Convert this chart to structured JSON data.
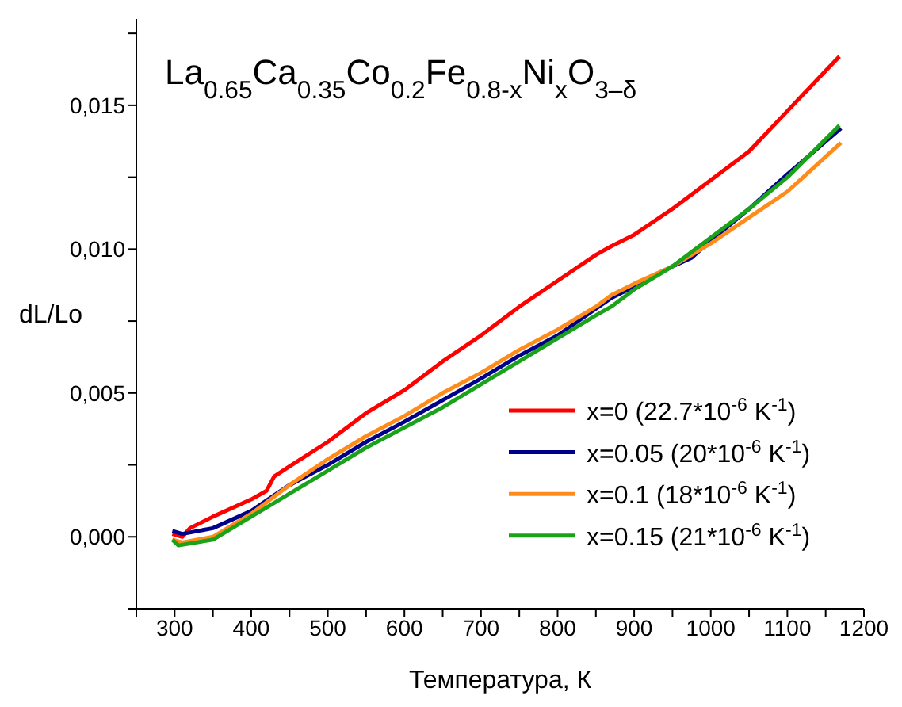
{
  "chart_data": {
    "type": "line",
    "title": "La$_{0.65}$Ca$_{0.35}$Co$_{0.2}$Fe$_{0.8-x}$Ni$_{x}$O$_{3–δ}$",
    "xlabel": "Температура, К",
    "ylabel": "dL/Lo",
    "xlim": [
      250,
      1200
    ],
    "xticks": [
      {
        "value": 250,
        "label": null
      },
      300,
      {
        "value": 350,
        "label": null
      },
      400,
      {
        "value": 450,
        "label": null
      },
      500,
      {
        "value": 550,
        "label": null
      },
      600,
      {
        "value": 650,
        "label": null
      },
      700,
      {
        "value": 750,
        "label": null
      },
      800,
      {
        "value": 850,
        "label": null
      },
      900,
      {
        "value": 950,
        "label": null
      },
      1000,
      {
        "value": 1050,
        "label": null
      },
      1100,
      {
        "value": 1150,
        "label": null
      },
      1200
    ],
    "ylim": [
      -0.0025,
      0.018
    ],
    "yticks": [
      {
        "value": -0.0025,
        "label": null
      },
      {
        "value": 0,
        "label": "0,000"
      },
      {
        "value": 0.0025,
        "label": null
      },
      {
        "value": 0.005,
        "label": "0,005"
      },
      {
        "value": 0.0075,
        "label": null
      },
      {
        "value": 0.01,
        "label": "0,010"
      },
      {
        "value": 0.0125,
        "label": null
      },
      {
        "value": 0.015,
        "label": "0,015"
      },
      {
        "value": 0.0175,
        "label": null
      }
    ],
    "legend": "bottom right",
    "marker": "none",
    "line_style": "solid",
    "series": [
      {
        "name": "x=0 (22.7*10$^{-6}$ K$^{-1}$)",
        "color": "#ff0000",
        "x": [
          297,
          310,
          320,
          350,
          400,
          420,
          430,
          450,
          500,
          550,
          600,
          650,
          700,
          750,
          800,
          850,
          870,
          900,
          950,
          1000,
          1050,
          1100,
          1150,
          1168
        ],
        "values": [
          0.0001,
          0.0,
          0.0003,
          0.0007,
          0.0013,
          0.0016,
          0.0021,
          0.00245,
          0.0033,
          0.0043,
          0.0051,
          0.0061,
          0.007,
          0.008,
          0.0089,
          0.0098,
          0.0101,
          0.0105,
          0.0114,
          0.0124,
          0.0134,
          0.0148,
          0.0162,
          0.0167
        ]
      },
      {
        "name": "x=0.05 (20*10$^{-6}$ K$^{-1}$)",
        "color": "#00008b",
        "x": [
          297,
          310,
          350,
          400,
          450,
          500,
          550,
          600,
          650,
          700,
          750,
          800,
          870,
          900,
          950,
          975,
          1000,
          1050,
          1100,
          1170
        ],
        "values": [
          0.0002,
          0.0001,
          0.0003,
          0.0009,
          0.0018,
          0.0025,
          0.0033,
          0.004,
          0.00475,
          0.0055,
          0.0063,
          0.007,
          0.0083,
          0.0087,
          0.0094,
          0.0097,
          0.0103,
          0.0114,
          0.0126,
          0.0142
        ]
      },
      {
        "name": "x=0.1 (18*10$^{-6}$ K$^{-1}$)",
        "color": "#ff8c1a",
        "x": [
          297,
          310,
          350,
          400,
          430,
          450,
          500,
          550,
          600,
          650,
          700,
          750,
          800,
          850,
          870,
          900,
          950,
          1000,
          1050,
          1100,
          1170
        ],
        "values": [
          -0.0001,
          -0.0002,
          0.0,
          0.0008,
          0.0014,
          0.0018,
          0.0027,
          0.0035,
          0.0042,
          0.005,
          0.0057,
          0.0065,
          0.0072,
          0.008,
          0.0084,
          0.0088,
          0.0094,
          0.0102,
          0.0111,
          0.012,
          0.0137
        ]
      },
      {
        "name": "x=0.15 (21*10$^{-6}$ K$^{-1}$)",
        "color": "#1aa31a",
        "x": [
          297,
          305,
          350,
          400,
          450,
          500,
          550,
          600,
          650,
          700,
          750,
          800,
          850,
          870,
          900,
          950,
          1000,
          1050,
          1100,
          1168
        ],
        "values": [
          -0.0001,
          -0.0003,
          -0.0001,
          0.0007,
          0.0015,
          0.0023,
          0.0031,
          0.0038,
          0.0045,
          0.0053,
          0.0061,
          0.0069,
          0.0077,
          0.008,
          0.0086,
          0.0094,
          0.0104,
          0.0114,
          0.0125,
          0.0143
        ]
      }
    ]
  }
}
